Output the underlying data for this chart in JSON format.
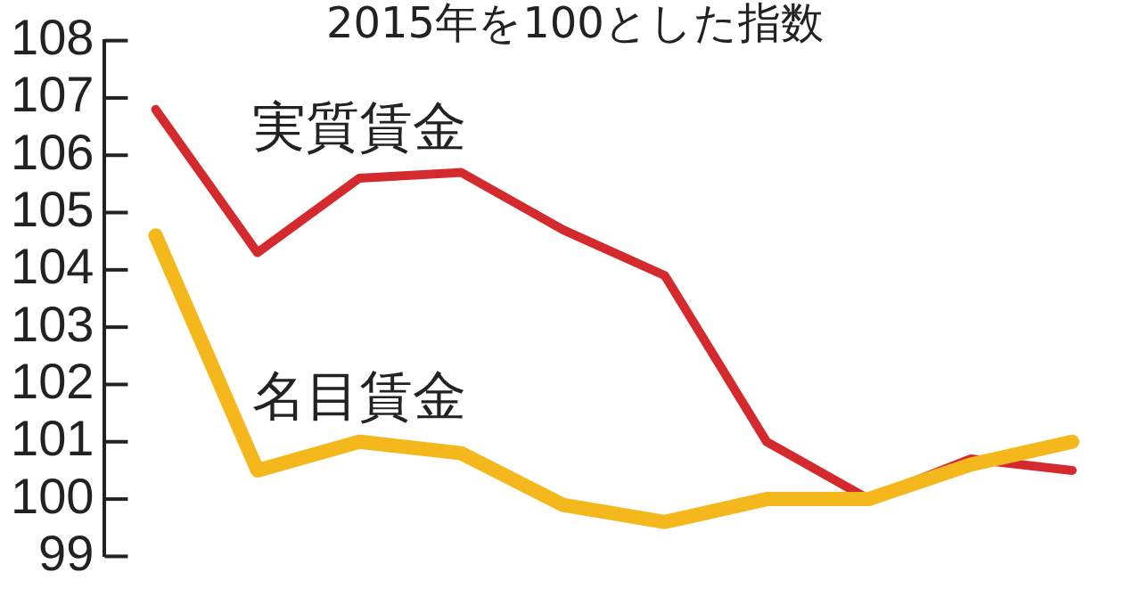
{
  "chart_data": {
    "type": "line",
    "title": "2015年を100とした指数",
    "categories": [
      null,
      null,
      null,
      null,
      null,
      null,
      null,
      null,
      null,
      null
    ],
    "series": [
      {
        "name": "実質賃金",
        "color": "#d42a2e",
        "values": [
          106.8,
          104.3,
          105.6,
          105.7,
          104.7,
          103.9,
          101.0,
          100.0,
          100.7,
          100.5
        ]
      },
      {
        "name": "名目賃金",
        "color": "#f5b81c",
        "values": [
          104.6,
          100.5,
          101.0,
          100.8,
          99.9,
          99.6,
          100.0,
          100.0,
          100.6,
          101.0
        ]
      }
    ],
    "ylim": [
      99,
      108
    ],
    "yticks": [
      99,
      100,
      101,
      102,
      103,
      104,
      105,
      106,
      107,
      108
    ],
    "grid": false,
    "legend": false,
    "marker": "none",
    "line_style": "solid"
  }
}
